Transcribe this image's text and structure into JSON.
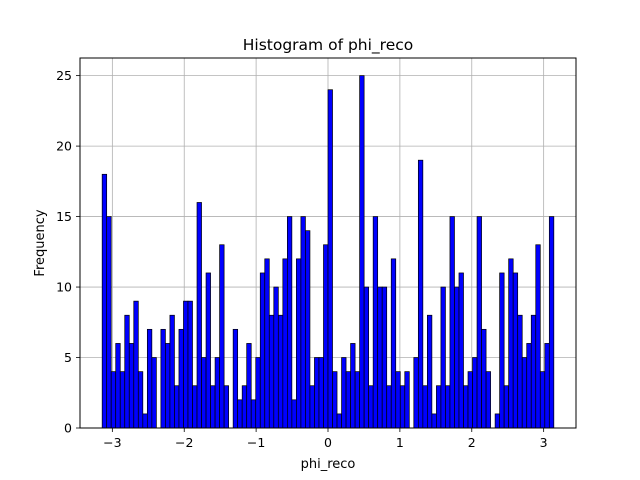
{
  "chart_data": {
    "type": "bar",
    "title": "Histogram of phi_reco",
    "xlabel": "phi_reco",
    "ylabel": "Frequency",
    "xlim": [
      -3.45,
      3.45
    ],
    "ylim": [
      0,
      26.25
    ],
    "grid": true,
    "bar_color": "#0000ff",
    "edge_color": "#000000",
    "x_ticks": [
      -3,
      -2,
      -1,
      0,
      1,
      2,
      3
    ],
    "x_tick_labels": [
      "−3",
      "−2",
      "−1",
      "0",
      "1",
      "2",
      "3"
    ],
    "y_ticks": [
      0,
      5,
      10,
      15,
      20,
      25
    ],
    "y_tick_labels": [
      "0",
      "5",
      "10",
      "15",
      "20",
      "25"
    ],
    "bin_start": -3.1416,
    "bin_end": 3.1416,
    "values": [
      18,
      15,
      4,
      6,
      4,
      8,
      6,
      9,
      4,
      1,
      7,
      5,
      0,
      7,
      6,
      8,
      3,
      7,
      9,
      9,
      3,
      16,
      5,
      11,
      3,
      5,
      13,
      3,
      0,
      7,
      2,
      3,
      6,
      2,
      5,
      11,
      12,
      8,
      10,
      8,
      12,
      15,
      2,
      12,
      15,
      14,
      3,
      5,
      5,
      13,
      24,
      4,
      1,
      5,
      4,
      6,
      4,
      25,
      10,
      3,
      15,
      10,
      10,
      3,
      12,
      4,
      3,
      4,
      0,
      5,
      19,
      3,
      8,
      1,
      3,
      10,
      3,
      15,
      10,
      11,
      3,
      4,
      5,
      15,
      7,
      4,
      0,
      1,
      11,
      3,
      12,
      11,
      8,
      5,
      6,
      8,
      13,
      4,
      6,
      15
    ]
  }
}
